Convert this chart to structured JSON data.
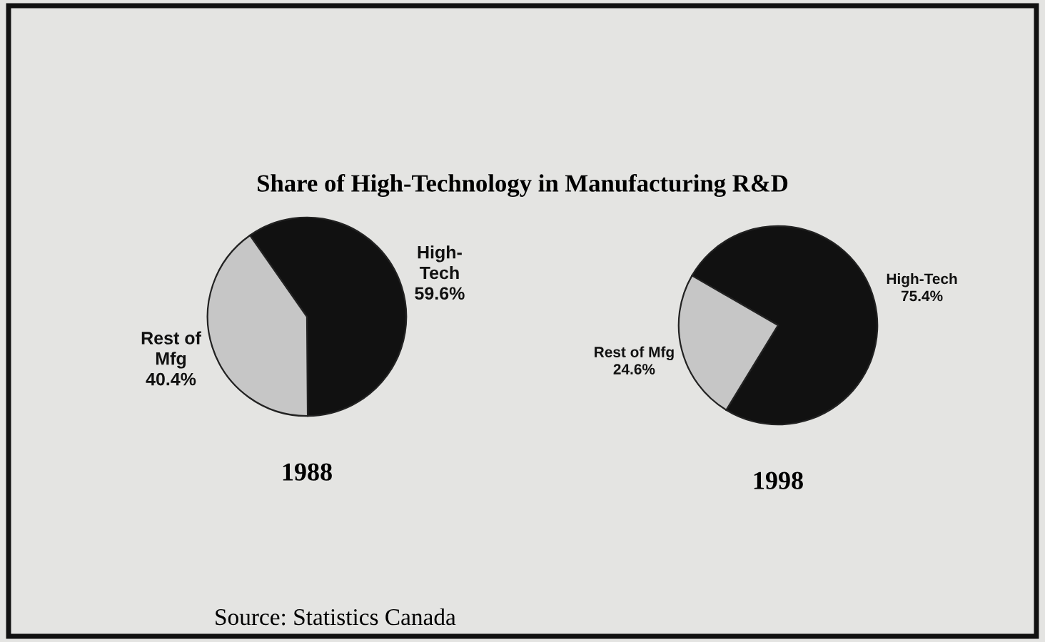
{
  "chart_data": [
    {
      "type": "pie",
      "title": "Share of High-Technology in Manufacturing R&D",
      "xlabel": "1988",
      "categories": [
        "High-\nTech",
        "Rest of\nMfg"
      ],
      "values": [
        59.6,
        40.4
      ],
      "value_labels": [
        "59.6%",
        "40.4%"
      ],
      "colors": [
        "#111111",
        "#c6c6c6"
      ],
      "annotations": [
        "Source: Statistics Canada"
      ],
      "legend": false
    },
    {
      "type": "pie",
      "xlabel": "1998",
      "categories": [
        "High-Tech",
        "Rest of Mfg"
      ],
      "values": [
        75.4,
        24.6
      ],
      "value_labels": [
        "75.4%",
        "24.6%"
      ],
      "colors": [
        "#111111",
        "#c6c6c6"
      ],
      "legend": false
    }
  ]
}
